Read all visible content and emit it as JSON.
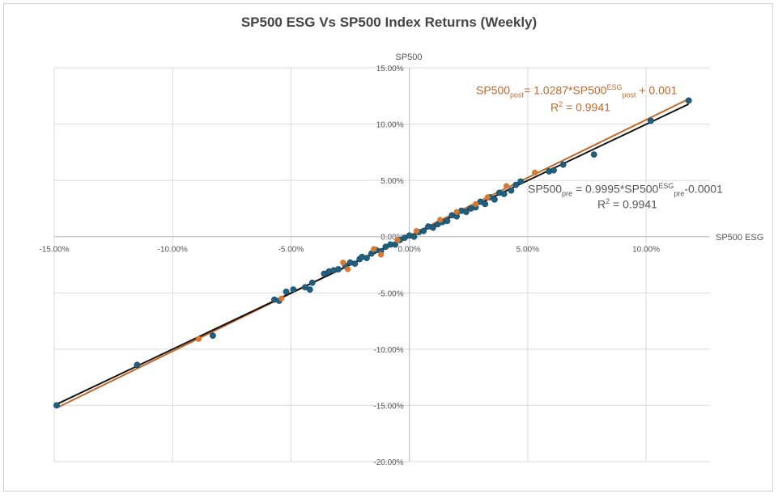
{
  "chart_data": {
    "type": "scatter",
    "title": "SP500 ESG Vs SP500 Index Returns (Weekly)",
    "xlabel": "SP500 ESG",
    "ylabel": "SP500",
    "xlim": [
      -15,
      12.7
    ],
    "ylim": [
      -20,
      15
    ],
    "xticks": [
      -15,
      -10,
      -5,
      0,
      5,
      10
    ],
    "xtick_labels": [
      "-15.00%",
      "-10.00%",
      "-5.00%",
      "0.00%",
      "5.00%",
      "10.00%"
    ],
    "yticks": [
      15,
      10,
      5,
      0,
      -5,
      -10,
      -15,
      -20
    ],
    "ytick_labels": [
      "15.00%",
      "10.00%",
      "5.00%",
      "0.00%",
      "-5.00%",
      "-10.00%",
      "-15.00%",
      "-20.00%"
    ],
    "grid": true,
    "colors": {
      "pre": "#1f5f7f",
      "post": "#d9782f",
      "pre_trend": "#111111",
      "post_trend": "#c0682a"
    },
    "series": [
      {
        "name": "pre",
        "points": [
          [
            -14.9,
            -15.0
          ],
          [
            -11.5,
            -11.4
          ],
          [
            -8.3,
            -8.8
          ],
          [
            -5.7,
            -5.6
          ],
          [
            -5.5,
            -5.7
          ],
          [
            -5.2,
            -4.9
          ],
          [
            -4.9,
            -4.7
          ],
          [
            -4.4,
            -4.5
          ],
          [
            -4.2,
            -4.7
          ],
          [
            -4.1,
            -4.1
          ],
          [
            -3.6,
            -3.3
          ],
          [
            -3.4,
            -3.1
          ],
          [
            -3.2,
            -3.0
          ],
          [
            -3.0,
            -2.9
          ],
          [
            -2.7,
            -2.6
          ],
          [
            -2.5,
            -2.3
          ],
          [
            -2.3,
            -2.4
          ],
          [
            -2.1,
            -2.0
          ],
          [
            -2.0,
            -1.8
          ],
          [
            -1.8,
            -1.9
          ],
          [
            -1.6,
            -1.5
          ],
          [
            -1.4,
            -1.2
          ],
          [
            -1.2,
            -1.3
          ],
          [
            -1.0,
            -0.9
          ],
          [
            -0.8,
            -0.7
          ],
          [
            -0.6,
            -0.7
          ],
          [
            -0.4,
            -0.3
          ],
          [
            -0.2,
            -0.1
          ],
          [
            0.0,
            0.1
          ],
          [
            0.2,
            0.0
          ],
          [
            0.4,
            0.4
          ],
          [
            0.6,
            0.5
          ],
          [
            0.8,
            0.9
          ],
          [
            1.0,
            0.8
          ],
          [
            1.2,
            1.1
          ],
          [
            1.4,
            1.3
          ],
          [
            1.6,
            1.4
          ],
          [
            1.8,
            1.9
          ],
          [
            2.0,
            1.8
          ],
          [
            2.2,
            2.3
          ],
          [
            2.4,
            2.2
          ],
          [
            2.6,
            2.5
          ],
          [
            2.8,
            2.6
          ],
          [
            3.0,
            3.1
          ],
          [
            3.2,
            2.9
          ],
          [
            3.4,
            3.5
          ],
          [
            3.6,
            3.3
          ],
          [
            3.8,
            3.9
          ],
          [
            4.0,
            3.8
          ],
          [
            4.3,
            4.1
          ],
          [
            4.5,
            4.6
          ],
          [
            4.7,
            4.9
          ],
          [
            5.9,
            5.8
          ],
          [
            6.1,
            5.9
          ],
          [
            6.5,
            6.4
          ],
          [
            7.8,
            7.3
          ],
          [
            10.2,
            10.3
          ],
          [
            11.8,
            12.1
          ]
        ]
      },
      {
        "name": "post",
        "points": [
          [
            -8.9,
            -9.1
          ],
          [
            -5.4,
            -5.5
          ],
          [
            -2.8,
            -2.3
          ],
          [
            -2.6,
            -2.9
          ],
          [
            -1.5,
            -1.1
          ],
          [
            -1.2,
            -1.6
          ],
          [
            -0.5,
            -0.3
          ],
          [
            0.3,
            0.5
          ],
          [
            1.3,
            1.5
          ],
          [
            2.0,
            2.2
          ],
          [
            2.8,
            2.9
          ],
          [
            3.3,
            3.5
          ],
          [
            4.1,
            4.5
          ],
          [
            5.3,
            5.7
          ]
        ]
      }
    ],
    "trendlines": [
      {
        "series": "post",
        "slope": 1.0287,
        "intercept": 0.001,
        "r2": 0.9941
      },
      {
        "series": "pre",
        "slope": 0.9995,
        "intercept": -0.0001,
        "r2": 0.9941
      }
    ],
    "annotations": {
      "post": {
        "lhs": "SP500",
        "lhs_sub": "post",
        "mid": "= 1.0287*SP500",
        "mid_sup": "ESG",
        "mid_sub": "post",
        "rhs": " + 0.001",
        "r2": "R",
        "r2_sup": "2",
        "r2_val": " = 0.9941"
      },
      "pre": {
        "lhs": "SP500",
        "lhs_sub": "pre",
        "mid": " = 0.9995*SP500",
        "mid_sup": "ESG",
        "mid_sub": "pre",
        "rhs": "-0.0001",
        "r2": "R",
        "r2_sup": "2",
        "r2_val": " = 0.9941"
      }
    }
  }
}
